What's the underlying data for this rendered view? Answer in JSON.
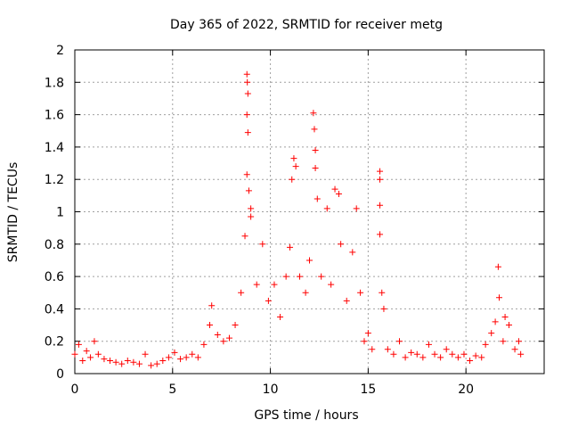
{
  "chart_data": {
    "type": "scatter",
    "title": "Day 365 of 2022, SRMTID for receiver metg",
    "xlabel": "GPS time / hours",
    "ylabel": "SRMTID / TECUs",
    "xlim": [
      0,
      24
    ],
    "ylim": [
      0,
      2
    ],
    "xticks": [
      0,
      5,
      10,
      15,
      20
    ],
    "xtick_labels": [
      "0",
      "5",
      "10",
      "15",
      "20"
    ],
    "yticks": [
      0,
      0.2,
      0.4,
      0.6,
      0.8,
      1,
      1.2,
      1.4,
      1.6,
      1.8,
      2
    ],
    "ytick_labels": [
      "0",
      "0.2",
      "0.4",
      "0.6",
      "0.8",
      "1",
      "1.2",
      "1.4",
      "1.6",
      "1.8",
      "2"
    ],
    "grid": true,
    "marker": "plus",
    "color": "#ff0000",
    "series": [
      {
        "name": "SRMTID",
        "points": [
          [
            0.0,
            0.12
          ],
          [
            0.2,
            0.18
          ],
          [
            0.4,
            0.08
          ],
          [
            0.6,
            0.14
          ],
          [
            0.8,
            0.1
          ],
          [
            1.0,
            0.2
          ],
          [
            1.2,
            0.12
          ],
          [
            1.5,
            0.09
          ],
          [
            1.8,
            0.08
          ],
          [
            2.1,
            0.07
          ],
          [
            2.4,
            0.06
          ],
          [
            2.7,
            0.08
          ],
          [
            3.0,
            0.07
          ],
          [
            3.3,
            0.06
          ],
          [
            3.6,
            0.12
          ],
          [
            3.9,
            0.05
          ],
          [
            4.2,
            0.06
          ],
          [
            4.5,
            0.08
          ],
          [
            4.8,
            0.1
          ],
          [
            5.1,
            0.13
          ],
          [
            5.4,
            0.09
          ],
          [
            5.7,
            0.1
          ],
          [
            6.0,
            0.12
          ],
          [
            6.3,
            0.1
          ],
          [
            6.6,
            0.18
          ],
          [
            6.9,
            0.3
          ],
          [
            7.0,
            0.42
          ],
          [
            7.3,
            0.24
          ],
          [
            7.6,
            0.2
          ],
          [
            7.9,
            0.22
          ],
          [
            8.2,
            0.3
          ],
          [
            8.5,
            0.5
          ],
          [
            8.7,
            0.85
          ],
          [
            8.8,
            1.85
          ],
          [
            8.82,
            1.8
          ],
          [
            8.85,
            1.73
          ],
          [
            8.8,
            1.6
          ],
          [
            8.85,
            1.49
          ],
          [
            8.8,
            1.23
          ],
          [
            8.9,
            1.13
          ],
          [
            9.0,
            1.02
          ],
          [
            9.0,
            0.97
          ],
          [
            9.3,
            0.55
          ],
          [
            9.6,
            0.8
          ],
          [
            9.9,
            0.45
          ],
          [
            10.2,
            0.55
          ],
          [
            10.5,
            0.35
          ],
          [
            10.8,
            0.6
          ],
          [
            11.0,
            0.78
          ],
          [
            11.1,
            1.2
          ],
          [
            11.2,
            1.33
          ],
          [
            11.3,
            1.28
          ],
          [
            11.5,
            0.6
          ],
          [
            11.8,
            0.5
          ],
          [
            12.0,
            0.7
          ],
          [
            12.2,
            1.61
          ],
          [
            12.25,
            1.51
          ],
          [
            12.3,
            1.38
          ],
          [
            12.3,
            1.27
          ],
          [
            12.4,
            1.08
          ],
          [
            12.6,
            0.6
          ],
          [
            12.9,
            1.02
          ],
          [
            13.1,
            0.55
          ],
          [
            13.3,
            1.14
          ],
          [
            13.5,
            1.11
          ],
          [
            13.6,
            0.8
          ],
          [
            13.9,
            0.45
          ],
          [
            14.2,
            0.75
          ],
          [
            14.4,
            1.02
          ],
          [
            14.6,
            0.5
          ],
          [
            14.8,
            0.2
          ],
          [
            15.0,
            0.25
          ],
          [
            15.2,
            0.15
          ],
          [
            15.6,
            1.25
          ],
          [
            15.6,
            1.2
          ],
          [
            15.6,
            1.04
          ],
          [
            15.6,
            0.86
          ],
          [
            15.7,
            0.5
          ],
          [
            15.8,
            0.4
          ],
          [
            16.0,
            0.15
          ],
          [
            16.3,
            0.12
          ],
          [
            16.6,
            0.2
          ],
          [
            16.9,
            0.1
          ],
          [
            17.2,
            0.13
          ],
          [
            17.5,
            0.12
          ],
          [
            17.8,
            0.1
          ],
          [
            18.1,
            0.18
          ],
          [
            18.4,
            0.12
          ],
          [
            18.7,
            0.1
          ],
          [
            19.0,
            0.15
          ],
          [
            19.3,
            0.12
          ],
          [
            19.6,
            0.1
          ],
          [
            19.9,
            0.12
          ],
          [
            20.2,
            0.08
          ],
          [
            20.5,
            0.11
          ],
          [
            20.8,
            0.1
          ],
          [
            21.0,
            0.18
          ],
          [
            21.3,
            0.25
          ],
          [
            21.5,
            0.32
          ],
          [
            21.65,
            0.66
          ],
          [
            21.7,
            0.47
          ],
          [
            21.9,
            0.2
          ],
          [
            22.0,
            0.35
          ],
          [
            22.2,
            0.3
          ],
          [
            22.5,
            0.15
          ],
          [
            22.7,
            0.2
          ],
          [
            22.8,
            0.12
          ]
        ]
      }
    ]
  }
}
